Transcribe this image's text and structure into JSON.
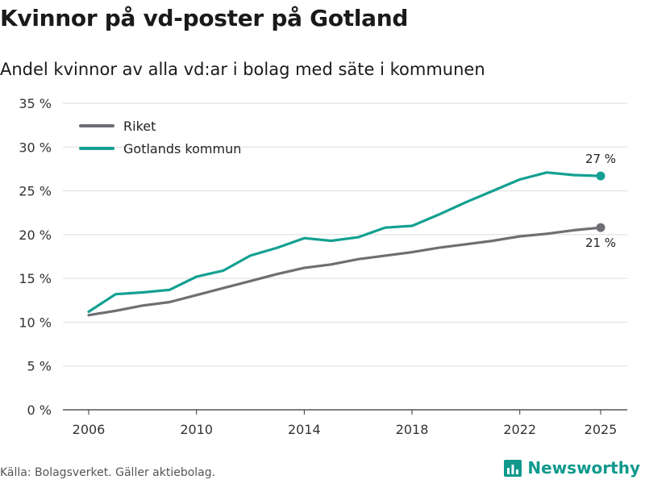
{
  "chart_data": {
    "type": "line",
    "title": "Kvinnor på vd-poster på Gotland",
    "subtitle": "Andel kvinnor av alla vd:ar i bolag med säte i kommunen",
    "x": [
      2006,
      2007,
      2008,
      2009,
      2010,
      2011,
      2012,
      2013,
      2014,
      2015,
      2016,
      2017,
      2018,
      2019,
      2020,
      2021,
      2022,
      2023,
      2024,
      2025
    ],
    "series": [
      {
        "name": "Riket",
        "color": "#6f6e73",
        "values": [
          10.8,
          11.3,
          11.9,
          12.3,
          13.1,
          13.9,
          14.7,
          15.5,
          16.2,
          16.6,
          17.2,
          17.6,
          18.0,
          18.5,
          18.9,
          19.3,
          19.8,
          20.1,
          20.5,
          20.8
        ],
        "end_label": "21 %"
      },
      {
        "name": "Gotlands kommun",
        "color": "#13a092",
        "values": [
          11.2,
          13.2,
          13.4,
          13.7,
          15.2,
          15.9,
          17.6,
          18.5,
          19.6,
          19.3,
          19.7,
          20.8,
          21.0,
          22.3,
          23.7,
          25.0,
          26.3,
          27.1,
          26.8,
          26.7
        ],
        "end_label": "27 %"
      }
    ],
    "ylim": [
      0,
      35
    ],
    "y_ticks": [
      0,
      5,
      10,
      15,
      20,
      25,
      30,
      35
    ],
    "y_tick_labels": [
      "0 %",
      "5 %",
      "10 %",
      "15 %",
      "20 %",
      "25 %",
      "30 %",
      "35 %"
    ],
    "x_ticks": [
      2006,
      2010,
      2014,
      2018,
      2022,
      2025
    ],
    "x_tick_labels": [
      "2006",
      "2010",
      "2014",
      "2018",
      "2022",
      "2025"
    ],
    "xlim": [
      2006,
      2025
    ],
    "grid": true,
    "legend_position": "top-left",
    "xlabel": "",
    "ylabel": ""
  },
  "footer": {
    "source": "Källa: Bolagsverket. Gäller aktiebolag.",
    "brand": "Newsworthy",
    "brand_color": "#10998c"
  }
}
